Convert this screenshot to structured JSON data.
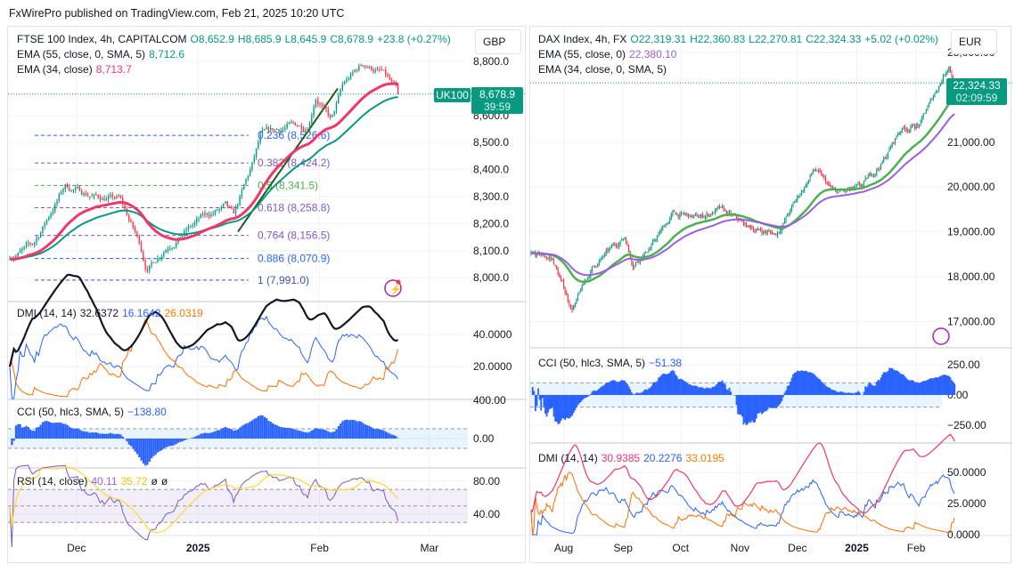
{
  "header": {
    "published": "FxWirePro published on TradingView.com, Feb 21, 2025 10:20 UTC"
  },
  "left": {
    "title": "FTSE 100 Index, 4h, CAPITALCOM",
    "o": "O8,652.9",
    "h": "H8,685.9",
    "l": "L8,645.9",
    "c": "C8,678.9",
    "chg": "+23.8 (+0.27%)",
    "ema1_label": "EMA (55, close, 0, SMA, 5)",
    "ema1_val": "8,712.6",
    "ema2_label": "EMA (34, close)",
    "ema2_val": "8,713.7",
    "currency": "GBP",
    "symbol_tag": "UK100",
    "price_tag": "8,678.9",
    "countdown": "39:59",
    "price_axis": [
      "8,800.0",
      "8,600.0",
      "8,500.0",
      "8,400.0",
      "8,300.0",
      "8,200.0",
      "8,100.0",
      "8,000.0"
    ],
    "fib": [
      {
        "label": "0.236 (8,526.6)",
        "v": 8526.6,
        "color": "#2962ff"
      },
      {
        "label": "0.382 (8,424.2)",
        "v": 8424.2,
        "color": "#7e57c2"
      },
      {
        "label": "0.5 (8,341.5)",
        "v": 8341.5,
        "color": "#4caf50"
      },
      {
        "label": "0.618 (8,258.8)",
        "v": 8258.8,
        "color": "#7e57c2"
      },
      {
        "label": "0.764 (8,156.5)",
        "v": 8156.5,
        "color": "#7e57c2"
      },
      {
        "label": "0.886 (8,070.9)",
        "v": 8070.9,
        "color": "#2962ff"
      },
      {
        "label": "1 (7,991.0)",
        "v": 7991.0,
        "color": "#3f51b5"
      }
    ],
    "dmi": {
      "label": "DMI (14, 14)",
      "adx": "32.6372",
      "pdi": "16.1642",
      "mdi": "26.0319",
      "axis": [
        "40.0000",
        "20.0000"
      ]
    },
    "cci": {
      "label": "CCI (50, hlc3, SMA, 5)",
      "val": "−138.80",
      "axis": [
        "400.00",
        "0.00"
      ]
    },
    "rsi": {
      "label": "RSI (14, close)",
      "val": "40.11",
      "ma": "35.72",
      "x1": "ø",
      "x2": "ø",
      "axis": [
        "80.00",
        "40.00"
      ]
    },
    "time_axis": [
      {
        "t": "Dec",
        "d": "2024-12-01"
      },
      {
        "t": "2025",
        "d": "2025-01-01",
        "bold": true
      },
      {
        "t": "Feb",
        "d": "2025-02-01"
      },
      {
        "t": "Mar",
        "d": "2025-03-01"
      }
    ]
  },
  "right": {
    "title": "DAX Index, 4h, FX",
    "o": "O22,319.31",
    "h": "H22,360.83",
    "l": "L22,270.81",
    "c": "C22,324.33",
    "chg": "+5.02 (+0.02%)",
    "ema1_label": "EMA (55, close, 0)",
    "ema1_val": "22,380.10",
    "ema2_label": "EMA (34, close, 0, SMA, 5)",
    "currency": "EUR",
    "price_tag": "22,324.33",
    "countdown": "02:09:59",
    "price_axis": [
      "23,000.00",
      "21,000.00",
      "20,000.00",
      "19,000.00",
      "18,000.00",
      "17,000.00"
    ],
    "cci": {
      "label": "CCI (50, hlc3, SMA, 5)",
      "val": "−51.38",
      "axis": [
        "250.00",
        "0.00",
        "−250.00"
      ]
    },
    "dmi": {
      "label": "DMI (14, 14)",
      "adx": "30.9385",
      "pdi": "20.2276",
      "mdi": "33.0195",
      "axis": [
        "50.0000",
        "25.0000",
        "0.0000"
      ]
    },
    "time_axis": [
      {
        "t": "Aug",
        "d": "2024-08-01"
      },
      {
        "t": "Sep",
        "d": "2024-09-01"
      },
      {
        "t": "Oct",
        "d": "2024-10-01"
      },
      {
        "t": "Nov",
        "d": "2024-11-01"
      },
      {
        "t": "Dec",
        "d": "2024-12-01"
      },
      {
        "t": "2025",
        "d": "2025-01-01",
        "bold": true
      },
      {
        "t": "Feb",
        "d": "2025-02-01"
      }
    ]
  },
  "chart_data": [
    {
      "type": "candlestick",
      "title": "FTSE 100 Index, 4h",
      "ylim": [
        7900,
        8850
      ],
      "approx_path": [
        [
          "2024-11-14",
          8080
        ],
        [
          "2024-11-20",
          8120
        ],
        [
          "2024-11-28",
          8340
        ],
        [
          "2024-12-06",
          8300
        ],
        [
          "2024-12-12",
          8290
        ],
        [
          "2024-12-17",
          8130
        ],
        [
          "2024-12-19",
          8030
        ],
        [
          "2024-12-24",
          8120
        ],
        [
          "2025-01-02",
          8220
        ],
        [
          "2025-01-08",
          8260
        ],
        [
          "2025-01-10",
          8220
        ],
        [
          "2025-01-15",
          8420
        ],
        [
          "2025-01-17",
          8520
        ],
        [
          "2025-01-24",
          8560
        ],
        [
          "2025-01-29",
          8560
        ],
        [
          "2025-01-31",
          8680
        ],
        [
          "2025-02-04",
          8580
        ],
        [
          "2025-02-07",
          8710
        ],
        [
          "2025-02-12",
          8790
        ],
        [
          "2025-02-17",
          8760
        ],
        [
          "2025-02-21",
          8679
        ]
      ]
    },
    {
      "type": "candlestick",
      "title": "DAX Index, 4h",
      "ylim": [
        16800,
        23100
      ],
      "approx_path": [
        [
          "2024-07-15",
          18500
        ],
        [
          "2024-07-26",
          18400
        ],
        [
          "2024-08-05",
          17300
        ],
        [
          "2024-08-07",
          17400
        ],
        [
          "2024-08-16",
          18200
        ],
        [
          "2024-09-02",
          18900
        ],
        [
          "2024-09-06",
          18300
        ],
        [
          "2024-09-16",
          18700
        ],
        [
          "2024-09-27",
          19400
        ],
        [
          "2024-10-10",
          19300
        ],
        [
          "2024-10-21",
          19500
        ],
        [
          "2024-11-05",
          19100
        ],
        [
          "2024-11-20",
          18950
        ],
        [
          "2024-11-29",
          19600
        ],
        [
          "2024-12-10",
          20400
        ],
        [
          "2024-12-20",
          19850
        ],
        [
          "2025-01-03",
          19950
        ],
        [
          "2025-01-15",
          20600
        ],
        [
          "2025-01-24",
          21300
        ],
        [
          "2025-02-03",
          21400
        ],
        [
          "2025-02-12",
          22200
        ],
        [
          "2025-02-18",
          22750
        ],
        [
          "2025-02-21",
          22324
        ]
      ]
    }
  ]
}
